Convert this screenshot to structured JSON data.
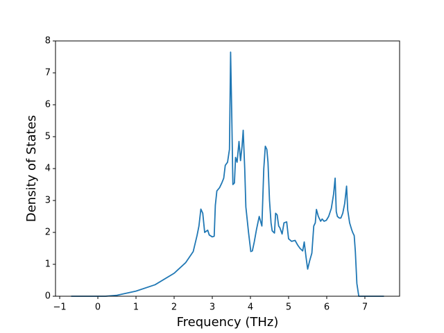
{
  "chart_data": {
    "type": "line",
    "xlabel": "Frequency (THz)",
    "ylabel": "Density of States",
    "x": [
      -0.7,
      0.0,
      0.2,
      0.5,
      1.0,
      1.5,
      2.0,
      2.3,
      2.5,
      2.6,
      2.65,
      2.7,
      2.75,
      2.8,
      2.88,
      2.92,
      3.0,
      3.05,
      3.08,
      3.12,
      3.19,
      3.25,
      3.3,
      3.34,
      3.4,
      3.45,
      3.48,
      3.51,
      3.54,
      3.58,
      3.61,
      3.65,
      3.7,
      3.74,
      3.78,
      3.81,
      3.85,
      3.88,
      3.95,
      4.01,
      4.05,
      4.1,
      4.16,
      4.23,
      4.3,
      4.35,
      4.39,
      4.43,
      4.46,
      4.5,
      4.54,
      4.57,
      4.63,
      4.66,
      4.7,
      4.74,
      4.77,
      4.83,
      4.88,
      4.95,
      5.0,
      5.08,
      5.17,
      5.24,
      5.3,
      5.37,
      5.41,
      5.46,
      5.5,
      5.55,
      5.61,
      5.66,
      5.7,
      5.73,
      5.78,
      5.84,
      5.88,
      5.93,
      5.99,
      6.05,
      6.12,
      6.18,
      6.22,
      6.25,
      6.28,
      6.33,
      6.37,
      6.42,
      6.47,
      6.52,
      6.55,
      6.6,
      6.65,
      6.68,
      6.72,
      6.75,
      6.79,
      6.84,
      7.5
    ],
    "values": [
      0,
      0,
      0,
      0.03,
      0.16,
      0.36,
      0.72,
      1.05,
      1.4,
      1.9,
      2.2,
      2.73,
      2.6,
      2.0,
      2.07,
      1.92,
      1.86,
      1.88,
      2.85,
      3.3,
      3.4,
      3.55,
      3.7,
      4.1,
      4.2,
      4.6,
      7.65,
      5.7,
      3.5,
      3.55,
      4.35,
      4.2,
      4.85,
      4.25,
      4.7,
      5.2,
      4.0,
      2.8,
      2.0,
      1.4,
      1.42,
      1.7,
      2.1,
      2.5,
      2.2,
      4.0,
      4.7,
      4.6,
      4.2,
      3.0,
      2.3,
      2.05,
      1.98,
      2.6,
      2.55,
      2.2,
      2.15,
      1.95,
      2.3,
      2.33,
      1.8,
      1.72,
      1.75,
      1.6,
      1.5,
      1.42,
      1.7,
      1.2,
      0.85,
      1.1,
      1.35,
      2.2,
      2.3,
      2.72,
      2.5,
      2.35,
      2.42,
      2.35,
      2.38,
      2.5,
      2.75,
      3.2,
      3.7,
      2.65,
      2.5,
      2.45,
      2.45,
      2.6,
      2.9,
      3.45,
      2.7,
      2.3,
      2.1,
      2.0,
      1.9,
      1.4,
      0.4,
      0,
      0
    ],
    "color": "#1f77b4",
    "xlim": [
      -1.11,
      7.91
    ],
    "ylim": [
      0,
      8
    ],
    "xticks": [
      {
        "value": -1,
        "label": "−1"
      },
      0,
      1,
      2,
      3,
      4,
      5,
      6,
      7
    ],
    "yticks": [
      0,
      1,
      2,
      3,
      4,
      5,
      6,
      7,
      8
    ]
  }
}
